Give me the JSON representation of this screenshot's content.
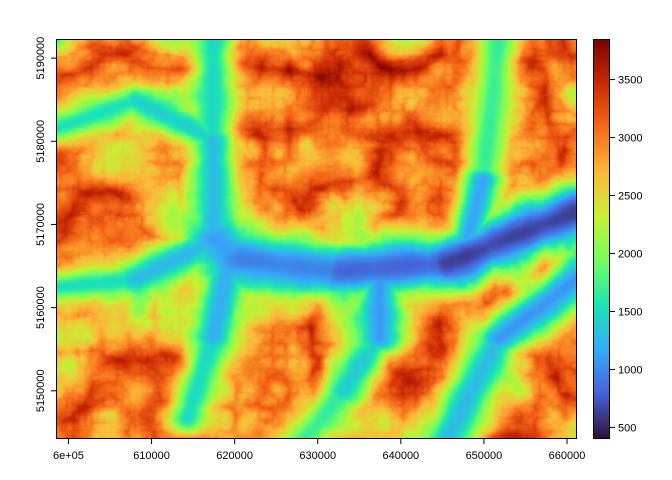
{
  "chart_data": {
    "type": "heatmap",
    "title": "",
    "xlabel": "",
    "ylabel": "",
    "xlim": [
      598500,
      661200
    ],
    "ylim": [
      5144200,
      5192300
    ],
    "x_ticks": [
      {
        "value": 600000,
        "label": "6e+05"
      },
      {
        "value": 610000,
        "label": "610000"
      },
      {
        "value": 620000,
        "label": "620000"
      },
      {
        "value": 630000,
        "label": "630000"
      },
      {
        "value": 640000,
        "label": "640000"
      },
      {
        "value": 650000,
        "label": "650000"
      },
      {
        "value": 660000,
        "label": "660000"
      }
    ],
    "y_ticks": [
      {
        "value": 5150000,
        "label": "5150000"
      },
      {
        "value": 5160000,
        "label": "5160000"
      },
      {
        "value": 5170000,
        "label": "5170000"
      },
      {
        "value": 5180000,
        "label": "5180000"
      },
      {
        "value": 5190000,
        "label": "5190000"
      }
    ],
    "legend": {
      "placement": "right",
      "range": [
        400,
        3850
      ],
      "ticks": [
        {
          "value": 500,
          "label": "500"
        },
        {
          "value": 1000,
          "label": "1000"
        },
        {
          "value": 1500,
          "label": "1500"
        },
        {
          "value": 2000,
          "label": "2000"
        },
        {
          "value": 2500,
          "label": "2500"
        },
        {
          "value": 3000,
          "label": "3000"
        },
        {
          "value": 3500,
          "label": "3500"
        }
      ]
    },
    "colors": [
      "#30123b",
      "#4662d7",
      "#36aaf9",
      "#1ae4b6",
      "#72fe5e",
      "#c8ef34",
      "#faba39",
      "#f66b19",
      "#cb2a04",
      "#7a0403"
    ]
  }
}
